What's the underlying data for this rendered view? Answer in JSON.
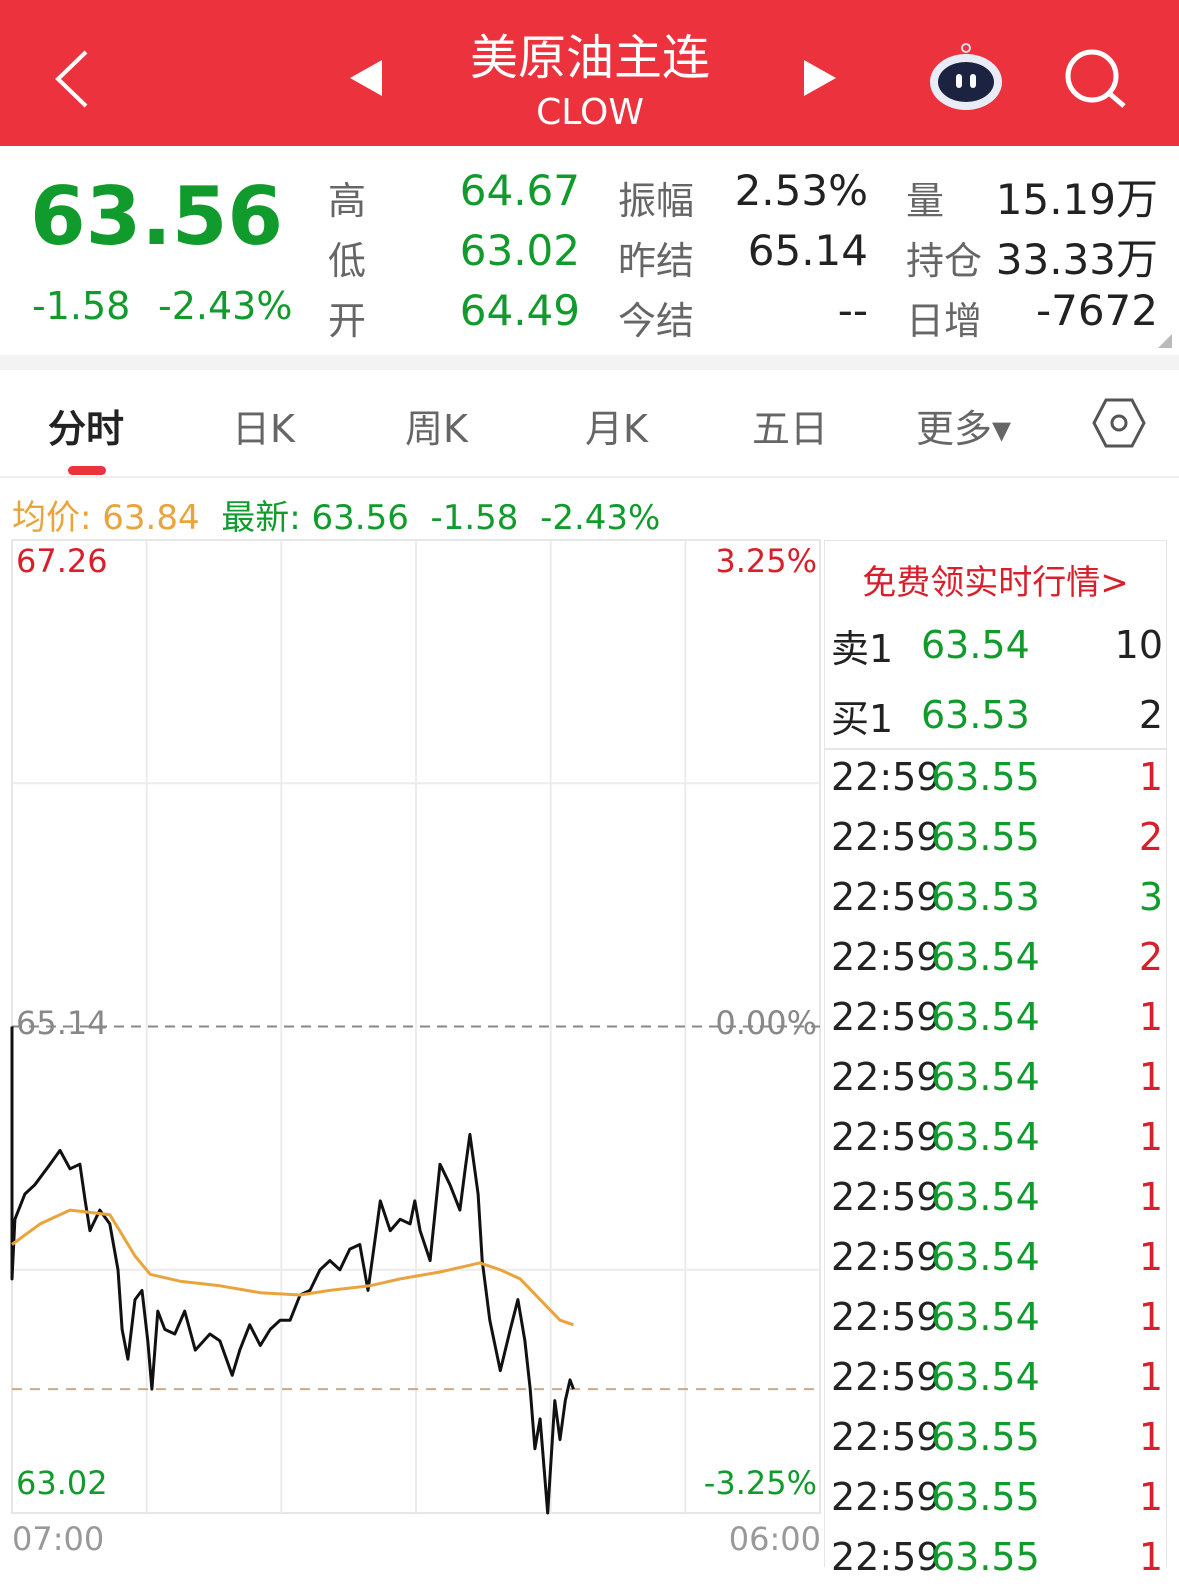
{
  "header": {
    "title": "美原油主连",
    "code": "CLOW",
    "icons": [
      "back-chevron-icon",
      "prev-triangle-icon",
      "next-triangle-icon",
      "robot-assistant-icon",
      "search-icon"
    ],
    "bg": "#ec333d"
  },
  "quote": {
    "last": "63.56",
    "change": "-1.58",
    "change_pct": "-2.43%",
    "stats": [
      {
        "label": "高",
        "value": "64.67",
        "color": "green"
      },
      {
        "label": "振幅",
        "value": "2.53%",
        "color": "black"
      },
      {
        "label": "量",
        "value": "15.19万",
        "color": "black"
      },
      {
        "label": "低",
        "value": "63.02",
        "color": "green"
      },
      {
        "label": "昨结",
        "value": "65.14",
        "color": "black"
      },
      {
        "label": "持仓",
        "value": "33.33万",
        "color": "black"
      },
      {
        "label": "开",
        "value": "64.49",
        "color": "green"
      },
      {
        "label": "今结",
        "value": "--",
        "color": "black"
      },
      {
        "label": "日增",
        "value": "-7672",
        "color": "black"
      }
    ]
  },
  "tabs": [
    {
      "label": "分时",
      "active": true
    },
    {
      "label": "日K"
    },
    {
      "label": "周K"
    },
    {
      "label": "月K"
    },
    {
      "label": "五日"
    },
    {
      "label": "更多▾"
    }
  ],
  "info": {
    "avg_label": "均价: 63.84",
    "latest_label": "最新: 63.56",
    "change": "-1.58",
    "change_pct": "-2.43%"
  },
  "chart_data": {
    "type": "line",
    "ylim": [
      63.02,
      67.26
    ],
    "ref_price": 65.14,
    "y_left_labels": [
      "67.26",
      "65.14",
      "63.02"
    ],
    "y_right_labels": [
      "3.25%",
      "0.00%",
      "-3.25%"
    ],
    "x_labels": [
      "07:00",
      "06:00"
    ],
    "xlim": [
      "07:00",
      "06:00"
    ],
    "colors": {
      "price": "#111111",
      "avg": "#e9a43c",
      "up": "#d8202b",
      "down": "#119b2c"
    },
    "series": [
      {
        "key": "price",
        "points": [
          [
            "07:00",
            65.14
          ],
          [
            "07:00",
            64.04
          ],
          [
            "07:05",
            64.3
          ],
          [
            "07:22",
            64.41
          ],
          [
            "07:39",
            64.45
          ],
          [
            "08:05",
            64.54
          ],
          [
            "08:22",
            64.6
          ],
          [
            "08:39",
            64.52
          ],
          [
            "08:56",
            64.54
          ],
          [
            "09:05",
            64.38
          ],
          [
            "09:13",
            64.25
          ],
          [
            "09:30",
            64.34
          ],
          [
            "09:47",
            64.28
          ],
          [
            "10:01",
            64.08
          ],
          [
            "10:08",
            63.82
          ],
          [
            "10:18",
            63.69
          ],
          [
            "10:30",
            63.95
          ],
          [
            "10:42",
            63.99
          ],
          [
            "10:52",
            63.77
          ],
          [
            "10:59",
            63.56
          ],
          [
            "11:09",
            63.9
          ],
          [
            "11:21",
            63.82
          ],
          [
            "11:38",
            63.8
          ],
          [
            "11:55",
            63.9
          ],
          [
            "12:13",
            63.73
          ],
          [
            "12:38",
            63.8
          ],
          [
            "12:55",
            63.77
          ],
          [
            "13:16",
            63.62
          ],
          [
            "13:29",
            63.73
          ],
          [
            "13:46",
            63.84
          ],
          [
            "14:04",
            63.75
          ],
          [
            "14:21",
            63.82
          ],
          [
            "14:38",
            63.86
          ],
          [
            "14:55",
            63.86
          ],
          [
            "15:12",
            63.97
          ],
          [
            "15:29",
            63.99
          ],
          [
            "15:46",
            64.08
          ],
          [
            "16:03",
            64.12
          ],
          [
            "16:20",
            64.08
          ],
          [
            "16:37",
            64.17
          ],
          [
            "16:54",
            64.19
          ],
          [
            "17:08",
            63.99
          ],
          [
            "17:20",
            64.21
          ],
          [
            "17:29",
            64.38
          ],
          [
            "17:46",
            64.25
          ],
          [
            "18:03",
            64.3
          ],
          [
            "18:20",
            64.28
          ],
          [
            "18:28",
            64.38
          ],
          [
            "18:37",
            64.25
          ],
          [
            "18:54",
            64.12
          ],
          [
            "19:11",
            64.54
          ],
          [
            "19:28",
            64.45
          ],
          [
            "19:45",
            64.34
          ],
          [
            "19:54",
            64.52
          ],
          [
            "20:02",
            64.67
          ],
          [
            "20:16",
            64.41
          ],
          [
            "20:23",
            64.12
          ],
          [
            "20:36",
            63.86
          ],
          [
            "20:54",
            63.64
          ],
          [
            "21:11",
            63.82
          ],
          [
            "21:24",
            63.95
          ],
          [
            "21:36",
            63.77
          ],
          [
            "21:45",
            63.56
          ],
          [
            "21:53",
            63.3
          ],
          [
            "22:02",
            63.43
          ],
          [
            "22:15",
            63.02
          ],
          [
            "22:27",
            63.51
          ],
          [
            "22:36",
            63.34
          ],
          [
            "22:45",
            63.51
          ],
          [
            "22:53",
            63.6
          ],
          [
            "22:59",
            63.56
          ]
        ]
      },
      {
        "key": "avg",
        "points": [
          [
            "07:00",
            64.19
          ],
          [
            "07:48",
            64.28
          ],
          [
            "08:39",
            64.34
          ],
          [
            "09:13",
            64.33
          ],
          [
            "09:47",
            64.32
          ],
          [
            "10:04",
            64.25
          ],
          [
            "10:30",
            64.14
          ],
          [
            "10:56",
            64.06
          ],
          [
            "11:47",
            64.03
          ],
          [
            "12:55",
            64.01
          ],
          [
            "14:04",
            63.98
          ],
          [
            "15:12",
            63.97
          ],
          [
            "16:03",
            63.99
          ],
          [
            "17:11",
            64.01
          ],
          [
            "18:03",
            64.04
          ],
          [
            "19:11",
            64.07
          ],
          [
            "20:02",
            64.1
          ],
          [
            "20:19",
            64.11
          ],
          [
            "20:54",
            64.08
          ],
          [
            "21:28",
            64.04
          ],
          [
            "22:02",
            63.95
          ],
          [
            "22:36",
            63.86
          ],
          [
            "22:59",
            63.84
          ]
        ]
      }
    ],
    "latest_line": 63.56
  },
  "orderbook": {
    "banner": "免费领实时行情>",
    "ask": {
      "label": "卖1",
      "price": "63.54",
      "qty": "10"
    },
    "bid": {
      "label": "买1",
      "price": "63.53",
      "qty": "2"
    }
  },
  "trades": [
    {
      "t": "22:59",
      "p": "63.55",
      "q": "1",
      "c": "red"
    },
    {
      "t": "22:59",
      "p": "63.55",
      "q": "2",
      "c": "red"
    },
    {
      "t": "22:59",
      "p": "63.53",
      "q": "3",
      "c": "green"
    },
    {
      "t": "22:59",
      "p": "63.54",
      "q": "2",
      "c": "red"
    },
    {
      "t": "22:59",
      "p": "63.54",
      "q": "1",
      "c": "red"
    },
    {
      "t": "22:59",
      "p": "63.54",
      "q": "1",
      "c": "red"
    },
    {
      "t": "22:59",
      "p": "63.54",
      "q": "1",
      "c": "red"
    },
    {
      "t": "22:59",
      "p": "63.54",
      "q": "1",
      "c": "red"
    },
    {
      "t": "22:59",
      "p": "63.54",
      "q": "1",
      "c": "red"
    },
    {
      "t": "22:59",
      "p": "63.54",
      "q": "1",
      "c": "red"
    },
    {
      "t": "22:59",
      "p": "63.54",
      "q": "1",
      "c": "red"
    },
    {
      "t": "22:59",
      "p": "63.55",
      "q": "1",
      "c": "red"
    },
    {
      "t": "22:59",
      "p": "63.55",
      "q": "1",
      "c": "red"
    },
    {
      "t": "22:59",
      "p": "63.55",
      "q": "1",
      "c": "red"
    }
  ]
}
